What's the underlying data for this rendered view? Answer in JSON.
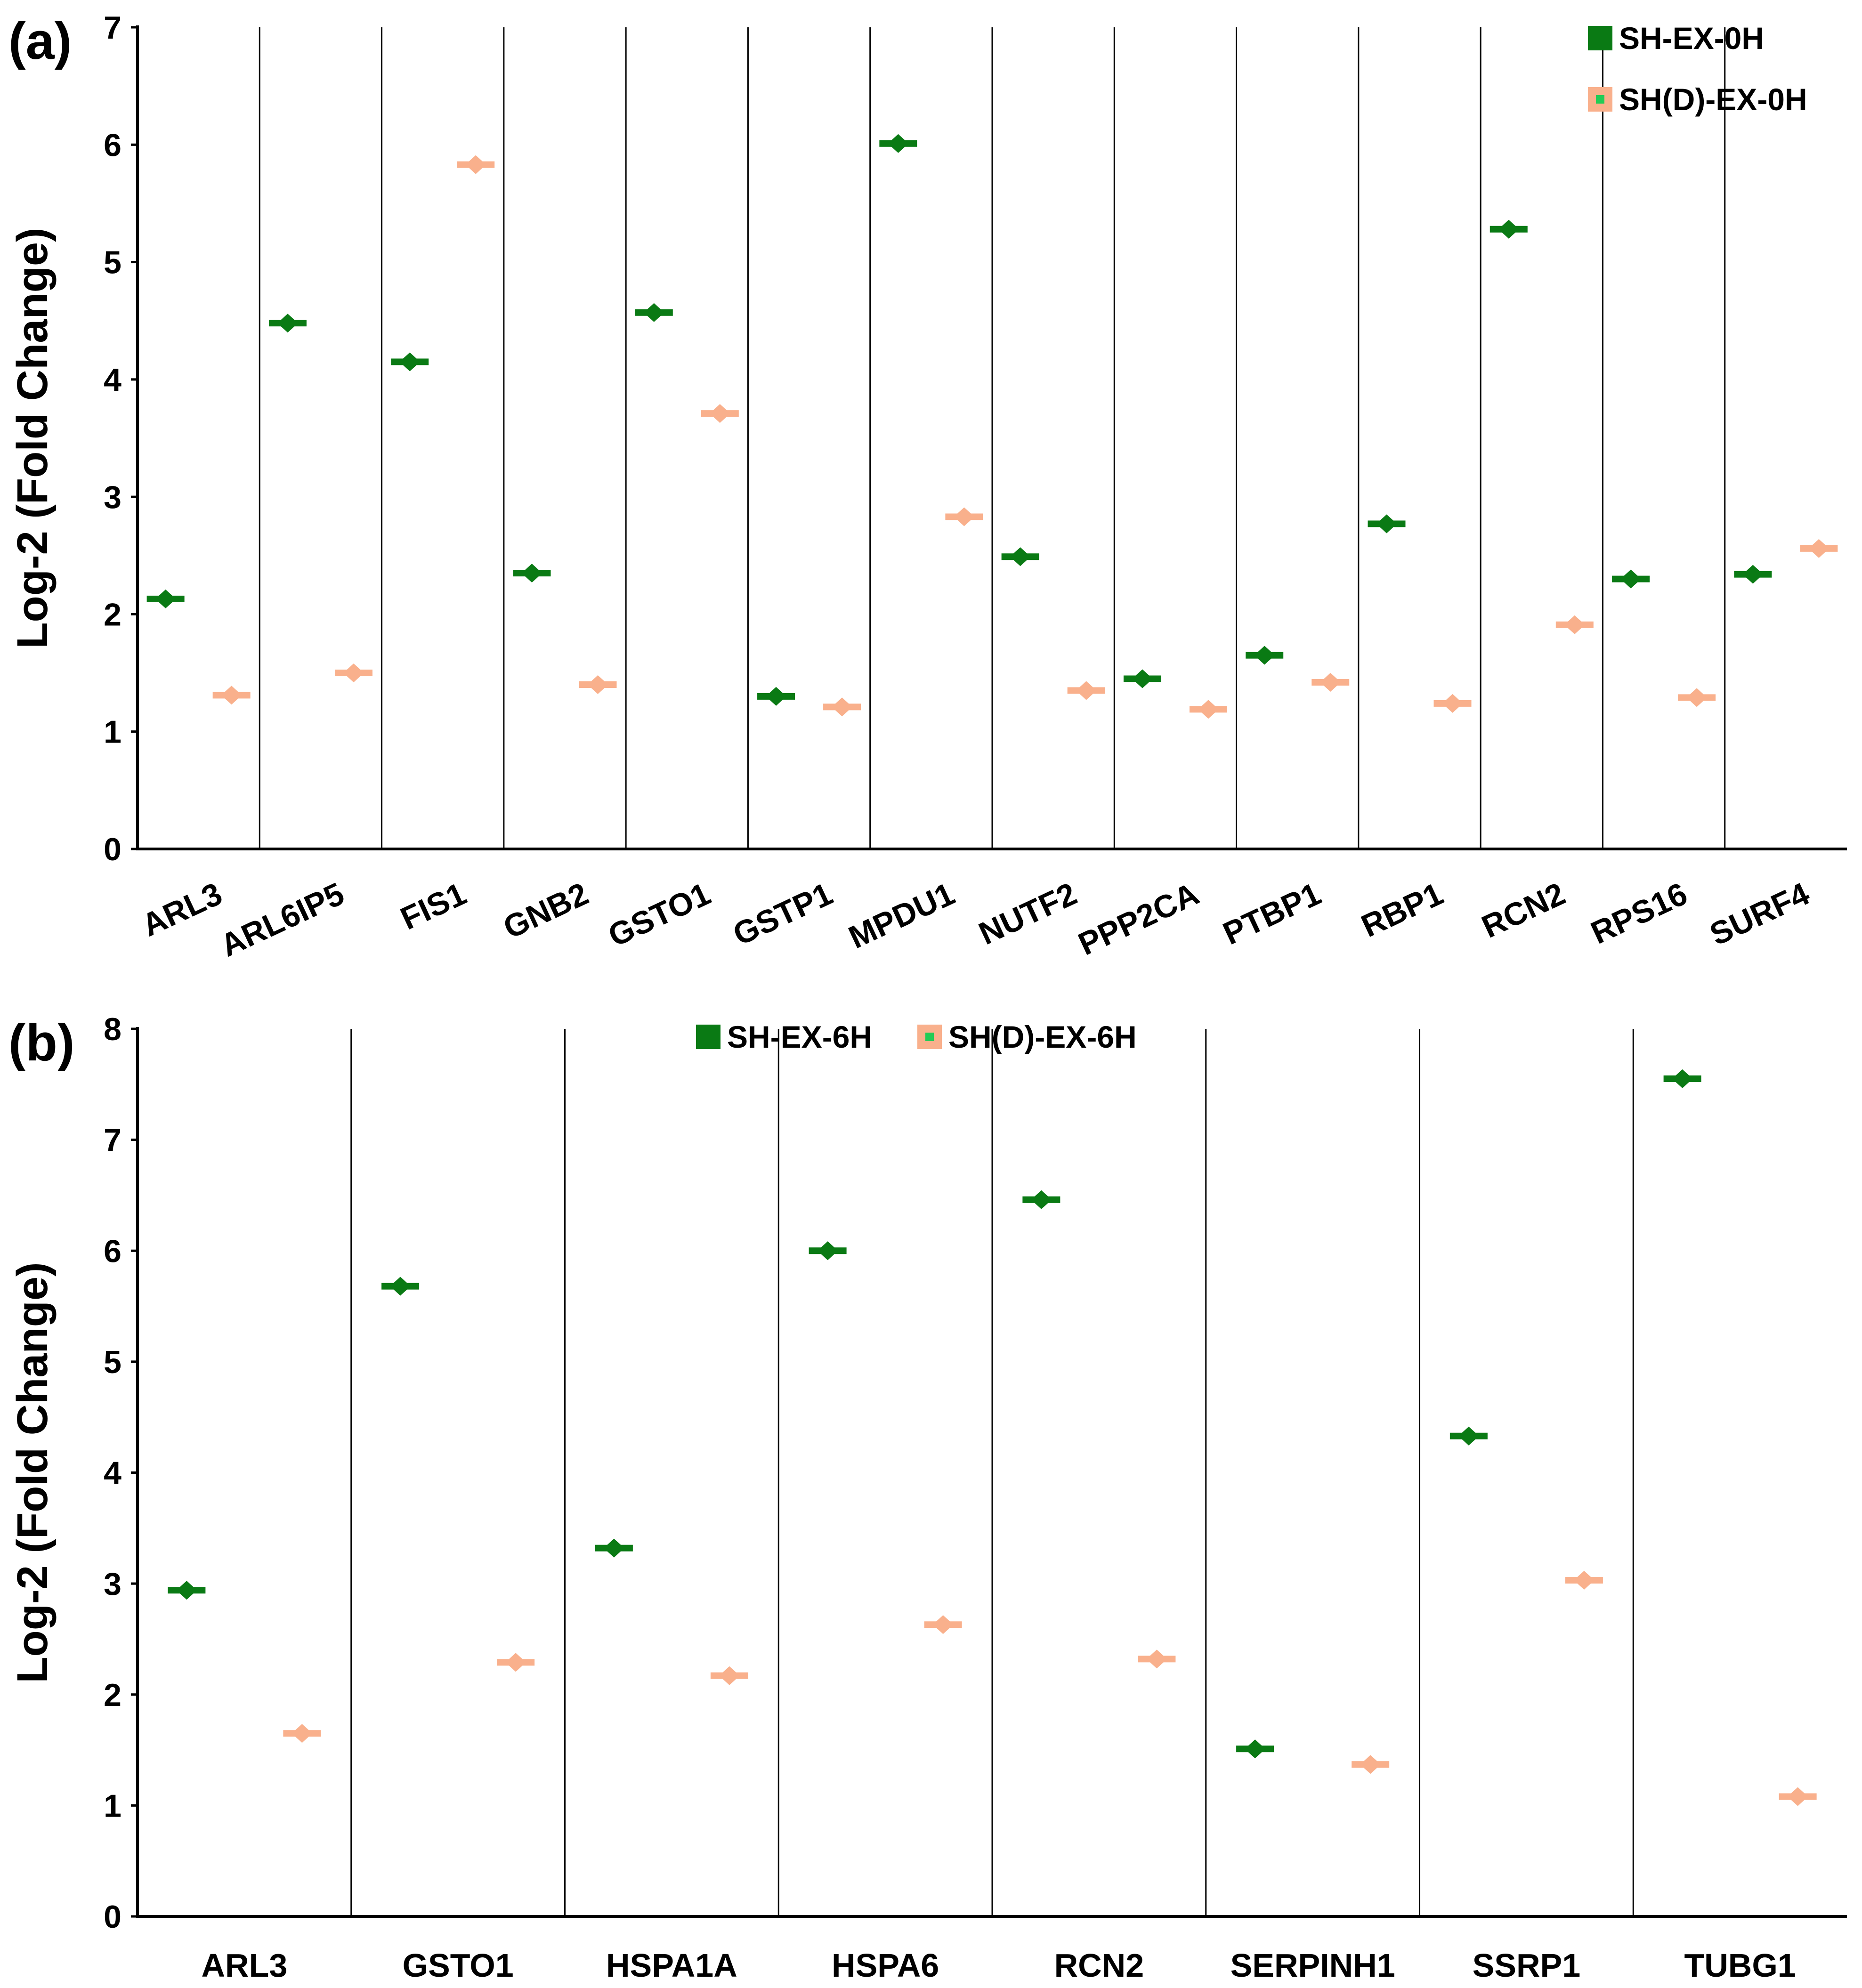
{
  "chart_data": [
    {
      "panel_label": "(a)",
      "type": "scatter",
      "ylabel": "Log-2 (Fold Change)",
      "ylim": [
        0,
        7
      ],
      "yticks": [
        0,
        1,
        2,
        3,
        4,
        5,
        6,
        7
      ],
      "legend_position": "top-right",
      "categories": [
        "ARL3",
        "ARL6IP5",
        "FIS1",
        "GNB2",
        "GSTO1",
        "GSTP1",
        "MPDU1",
        "NUTF2",
        "PPP2CA",
        "PTBP1",
        "RBP1",
        "RCN2",
        "RPS16",
        "SURF4"
      ],
      "series": [
        {
          "name": "SH-EX-0H",
          "color": "#0a7a14",
          "values": [
            2.13,
            4.48,
            4.15,
            2.35,
            4.57,
            1.3,
            6.01,
            2.49,
            1.45,
            1.65,
            2.77,
            5.28,
            2.3,
            2.34
          ]
        },
        {
          "name": "SH(D)-EX-0H",
          "color": "#f9b08c",
          "values": [
            1.31,
            1.5,
            5.83,
            1.4,
            3.71,
            1.21,
            2.83,
            1.35,
            1.19,
            1.42,
            1.24,
            1.91,
            1.29,
            2.56
          ]
        }
      ]
    },
    {
      "panel_label": "(b)",
      "type": "scatter",
      "ylabel": "Log-2 (Fold Change)",
      "ylim": [
        0,
        8
      ],
      "yticks": [
        0,
        1,
        2,
        3,
        4,
        5,
        6,
        7,
        8
      ],
      "legend_position": "top-center",
      "categories": [
        "ARL3",
        "GSTO1",
        "HSPA1A",
        "HSPA6",
        "RCN2",
        "SERPINH1",
        "SSRP1",
        "TUBG1"
      ],
      "series": [
        {
          "name": "SH-EX-6H",
          "color": "#0a7a14",
          "values": [
            2.94,
            5.68,
            3.32,
            6.0,
            6.46,
            1.51,
            4.33,
            7.55
          ]
        },
        {
          "name": "SH(D)-EX-6H",
          "color": "#f9b08c",
          "values": [
            1.65,
            2.29,
            2.17,
            2.63,
            2.32,
            1.37,
            3.03,
            1.08
          ]
        }
      ]
    }
  ]
}
